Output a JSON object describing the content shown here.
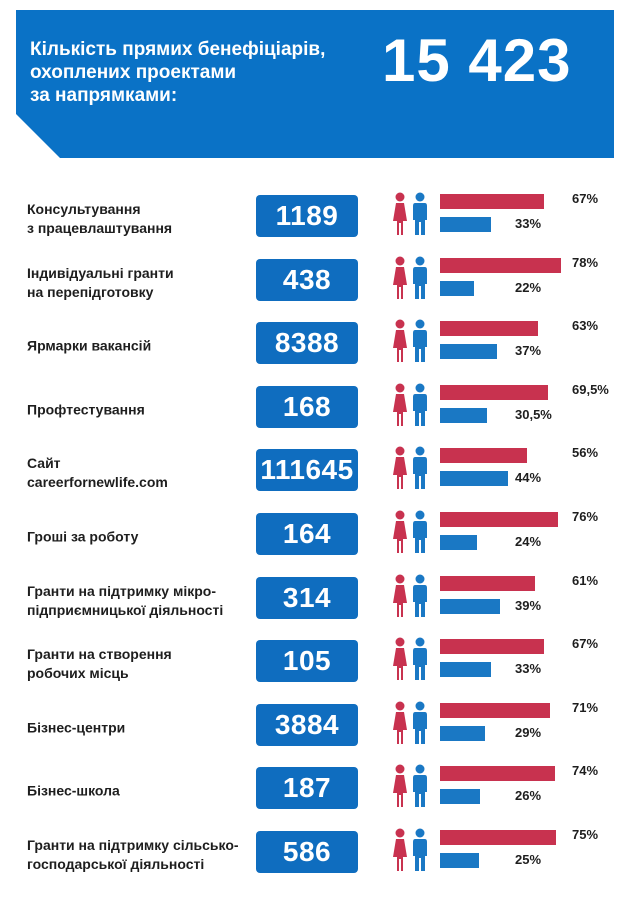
{
  "header": {
    "title": "Кількість прямих бенефіціарів,\nохоплених проектами\nза напрямками:",
    "total": "15 423"
  },
  "colors": {
    "banner": "#0a72c6",
    "box": "#0f6dbf",
    "female": "#c8324f",
    "male": "#1a78c4"
  },
  "icons": {
    "female": "female-person-icon",
    "male": "male-person-icon"
  },
  "chart_data": {
    "type": "bar",
    "title": "Кількість прямих бенефіціарів, охоплених проектами за напрямками:",
    "total": "15 423",
    "categories": [
      "Консультування\nз працевлаштування",
      "Індивідуальні гранти\nна перепідготовку",
      "Ярмарки вакансій",
      "Профтестування",
      "Сайт\ncareerfornewlife.com",
      "Гроші за роботу",
      "Гранти на підтримку мікро-\nпідприємницької діяльності",
      "Гранти на створення\nробочих місць",
      "Бізнес-центри",
      "Бізнес-школа",
      "Гранти на підтримку сільсько-\nгосподарської діяльності"
    ],
    "counts": [
      "1189",
      "438",
      "8388",
      "168",
      "111645",
      "164",
      "314",
      "105",
      "3884",
      "187",
      "586"
    ],
    "series": [
      {
        "values": [
          67,
          78,
          63,
          69.5,
          56,
          76,
          61,
          67,
          71,
          74,
          75
        ],
        "labels": [
          "67%",
          "78%",
          "63%",
          "69,5%",
          "56%",
          "76%",
          "61%",
          "67%",
          "71%",
          "74%",
          "75%"
        ]
      },
      {
        "values": [
          33,
          22,
          37,
          30.5,
          44,
          24,
          39,
          33,
          29,
          26,
          25
        ],
        "labels": [
          "33%",
          "22%",
          "37%",
          "30,5%",
          "44%",
          "24%",
          "39%",
          "33%",
          "29%",
          "26%",
          "25%"
        ]
      }
    ],
    "ylim": [
      0,
      100
    ]
  }
}
